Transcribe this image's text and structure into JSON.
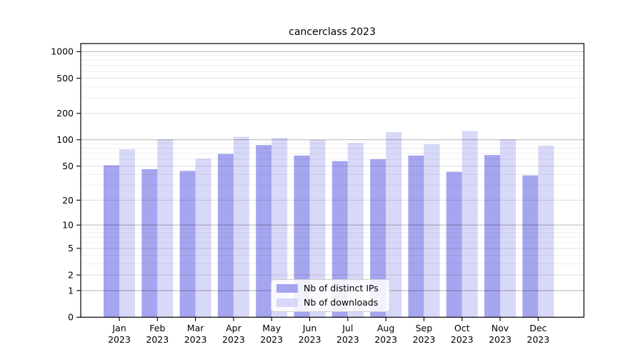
{
  "figure": {
    "background": "#ffffff"
  },
  "chart_data": {
    "type": "bar",
    "title": "cancerclass 2023",
    "categories": [
      "Jan",
      "Feb",
      "Mar",
      "Apr",
      "May",
      "Jun",
      "Jul",
      "Aug",
      "Sep",
      "Oct",
      "Nov",
      "Dec"
    ],
    "category_year": "2023",
    "series": [
      {
        "name": "Nb of distinct IPs",
        "color": "#a5a5f0",
        "values": [
          51,
          46,
          44,
          69,
          87,
          66,
          57,
          60,
          66,
          43,
          67,
          39
        ]
      },
      {
        "name": "Nb of downloads",
        "color": "#d8d8f8",
        "values": [
          78,
          101,
          61,
          108,
          105,
          100,
          92,
          122,
          89,
          126,
          101,
          86
        ]
      }
    ],
    "yscale": "log1p",
    "ylim": [
      0,
      1233
    ],
    "yticks": [
      0,
      1,
      2,
      5,
      10,
      20,
      50,
      100,
      200,
      500,
      1000
    ],
    "minor_gridlines": [
      3,
      4,
      6,
      7,
      8,
      9,
      30,
      40,
      60,
      70,
      80,
      90,
      300,
      400,
      600,
      700,
      800,
      900
    ],
    "grid": true,
    "legend_position": "lower center"
  },
  "colors": {
    "bar_ips": "#a5a5f0",
    "bar_downloads": "#d8d8f8",
    "grid_decade": "rgba(0,0,0,0.30)",
    "grid_major": "rgba(0,0,0,0.13)",
    "grid_minor": "rgba(0,0,0,0.065)",
    "axis": "#000000",
    "text": "#000000"
  }
}
